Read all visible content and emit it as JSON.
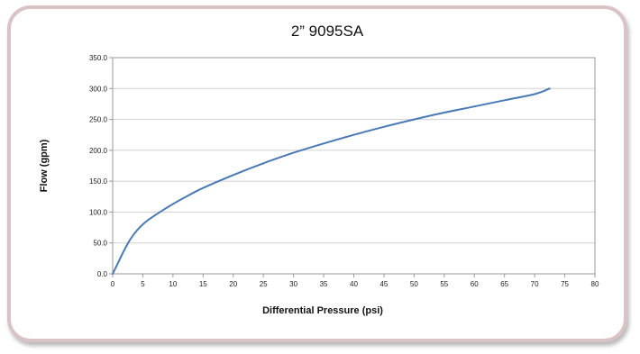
{
  "chart_data": {
    "type": "line",
    "title": "2” 9095SA",
    "xlabel": "Differential Pressure (psi)",
    "ylabel": "Flow (gpm)",
    "xlim": [
      0,
      80
    ],
    "ylim": [
      0,
      350
    ],
    "x_ticks": [
      "0",
      "5",
      "10",
      "15",
      "20",
      "25",
      "30",
      "35",
      "40",
      "45",
      "50",
      "55",
      "60",
      "65",
      "70",
      "75",
      "80"
    ],
    "y_ticks": [
      "0.0",
      "50.0",
      "100.0",
      "150.0",
      "200.0",
      "250.0",
      "300.0",
      "350.0"
    ],
    "grid": "horizontal",
    "line_color": "#4a7ab5",
    "series": [
      {
        "x": [
          0,
          1,
          2,
          3,
          4,
          5,
          6,
          8,
          10,
          12,
          15,
          20,
          25,
          30,
          35,
          40,
          45,
          50,
          55,
          60,
          65,
          70,
          72.5
        ],
        "values": [
          0,
          20,
          40,
          57,
          70,
          80,
          88,
          101,
          113,
          124,
          139,
          160,
          179,
          196,
          211,
          225,
          238,
          250,
          261,
          271,
          281,
          291,
          300
        ]
      }
    ]
  }
}
